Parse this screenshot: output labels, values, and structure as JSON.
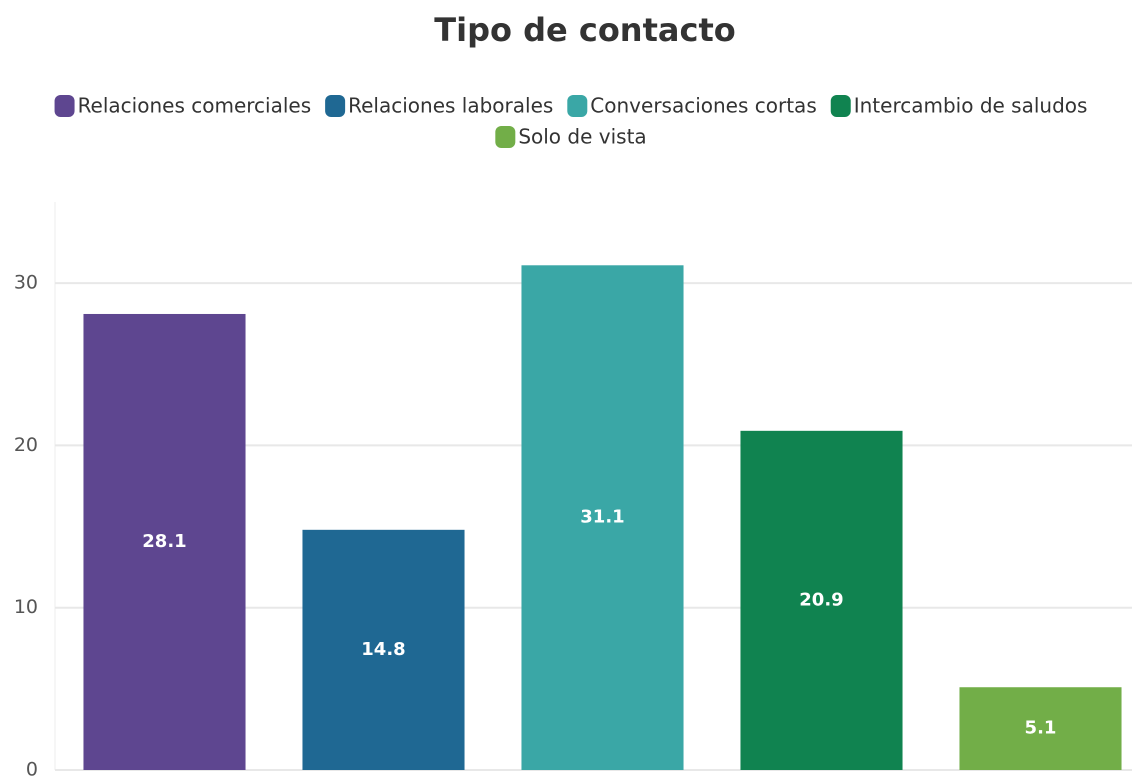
{
  "chart_data": {
    "type": "bar",
    "title": "Tipo de contacto",
    "categories": [
      null
    ],
    "series": [
      {
        "name": "Relaciones comerciales",
        "color": "#5e4690",
        "values": [
          28.1
        ]
      },
      {
        "name": "Relaciones laborales",
        "color": "#1f6893",
        "values": [
          14.8
        ]
      },
      {
        "name": "Conversaciones cortas",
        "color": "#3aa7a6",
        "values": [
          31.1
        ]
      },
      {
        "name": "Intercambio de saludos",
        "color": "#108350",
        "values": [
          20.9
        ]
      },
      {
        "name": "Solo de vista",
        "color": "#72ae48",
        "values": [
          5.1
        ]
      }
    ],
    "ylim": [
      0,
      35
    ],
    "yticks": [
      0,
      10,
      20,
      30
    ],
    "grid": true,
    "legend": "top"
  }
}
